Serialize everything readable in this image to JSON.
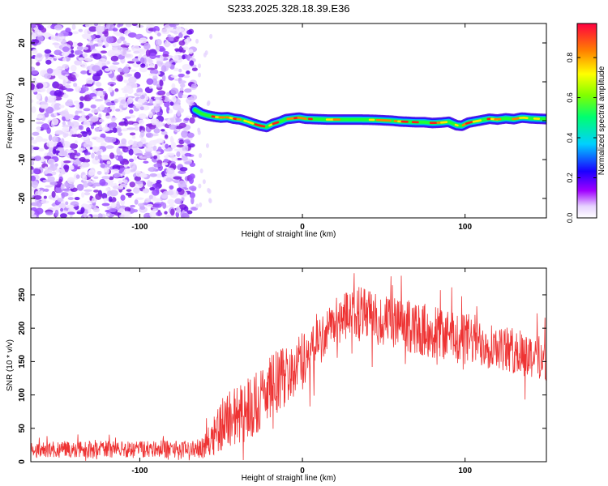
{
  "title": "S233.2025.328.18.39.E36",
  "chart_data": [
    {
      "type": "heatmap",
      "title": "S233.2025.328.18.39.E36",
      "xlabel": "Height of straight line (km)",
      "ylabel": "Frequency (Hz)",
      "xlim": [
        -167,
        150
      ],
      "ylim": [
        -25,
        25
      ],
      "x_ticks": [
        -100,
        0,
        100
      ],
      "x_tick_labels": [
        "-100",
        "0",
        "100"
      ],
      "y_ticks": [
        -20,
        -10,
        0,
        10,
        20
      ],
      "y_tick_labels": [
        "-20",
        "-10",
        "0",
        "10",
        "20"
      ],
      "noise_region_x": [
        -167,
        -66
      ],
      "signal_region_x": [
        -66,
        150
      ],
      "ridge": {
        "x": [
          -66,
          -62,
          -58,
          -54,
          -50,
          -46,
          -42,
          -38,
          -34,
          -30,
          -26,
          -22,
          -18,
          -14,
          -10,
          -6,
          -2,
          2,
          8,
          15,
          25,
          35,
          45,
          50,
          55,
          60,
          65,
          70,
          75,
          80,
          85,
          90,
          95,
          98,
          102,
          106,
          110,
          115,
          120,
          125,
          130,
          135,
          140,
          145,
          150
        ],
        "y": [
          2.8,
          1.8,
          1.3,
          1.0,
          0.8,
          0.9,
          0.5,
          0.3,
          -0.2,
          -0.8,
          -1.3,
          -1.6,
          -0.8,
          -0.3,
          0.4,
          0.6,
          0.8,
          0.5,
          0.4,
          0.3,
          0.3,
          0.3,
          0.2,
          0.1,
          0.0,
          -0.2,
          -0.3,
          -0.4,
          -0.4,
          -0.6,
          -0.5,
          -0.3,
          -1.2,
          -1.3,
          -0.5,
          -0.2,
          0.1,
          0.5,
          0.3,
          0.6,
          0.4,
          0.8,
          0.6,
          0.5,
          0.4
        ]
      },
      "colorbar": {
        "label": "Normalized spectral amplitude",
        "range": [
          0,
          0.97
        ],
        "ticks": [
          0,
          0.2,
          0.4,
          0.6,
          0.8
        ],
        "tick_labels": [
          "0.0",
          "0.2",
          "0.4",
          "0.6",
          "0.8"
        ]
      }
    },
    {
      "type": "line",
      "xlabel": "Height of straight line (km)",
      "ylabel": "SNR (10 * v/v)",
      "xlim": [
        -167,
        150
      ],
      "ylim": [
        0,
        290
      ],
      "x_ticks": [
        -100,
        0,
        100
      ],
      "x_tick_labels": [
        "-100",
        "0",
        "100"
      ],
      "y_ticks": [
        0,
        50,
        100,
        150,
        200,
        250
      ],
      "y_tick_labels": [
        "0",
        "50",
        "100",
        "150",
        "200",
        "250"
      ],
      "series": [
        {
          "name": "SNR",
          "color": "#ee3333",
          "envelope": {
            "x": [
              -167,
              -120,
              -80,
              -66,
              -60,
              -55,
              -50,
              -45,
              -40,
              -35,
              -30,
              -25,
              -20,
              -15,
              -10,
              -5,
              0,
              5,
              10,
              15,
              20,
              25,
              30,
              35,
              40,
              50,
              60,
              70,
              80,
              90,
              100,
              110,
              120,
              130,
              140,
              150
            ],
            "mean": [
              18,
              19,
              19,
              19,
              22,
              45,
              55,
              65,
              70,
              80,
              85,
              95,
              110,
              120,
              130,
              140,
              150,
              165,
              180,
              195,
              210,
              215,
              220,
              225,
              220,
              210,
              205,
              200,
              195,
              190,
              185,
              180,
              172,
              165,
              160,
              155
            ],
            "spread": [
              12,
              13,
              13,
              12,
              18,
              35,
              40,
              45,
              45,
              50,
              50,
              50,
              50,
              50,
              45,
              45,
              45,
              40,
              40,
              35,
              35,
              35,
              40,
              40,
              40,
              40,
              40,
              40,
              40,
              40,
              40,
              38,
              35,
              35,
              35,
              35
            ]
          }
        }
      ]
    }
  ]
}
